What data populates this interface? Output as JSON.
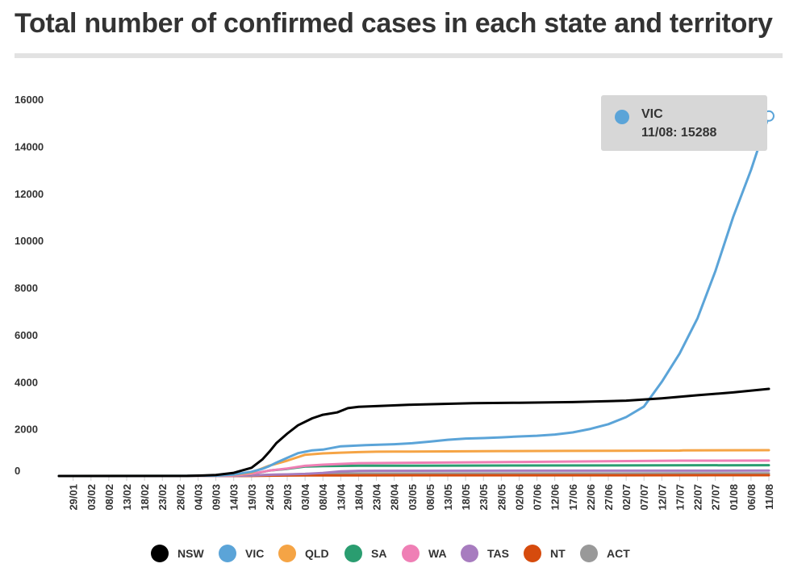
{
  "title": "Total number of confirmed cases in each state and territory",
  "tooltip": {
    "series": "VIC",
    "label": "11/08: 15288",
    "color": "#5ba4d8"
  },
  "chart_data": {
    "type": "line",
    "title": "Total number of confirmed cases in each state and territory",
    "xlabel": "",
    "ylabel": "",
    "x_range": [
      "25/01",
      "11/08"
    ],
    "x_ticks": [
      "29/01",
      "03/02",
      "08/02",
      "13/02",
      "18/02",
      "23/02",
      "28/02",
      "04/03",
      "09/03",
      "14/03",
      "19/03",
      "24/03",
      "29/03",
      "03/04",
      "08/04",
      "13/04",
      "18/04",
      "23/04",
      "28/04",
      "03/05",
      "08/05",
      "13/05",
      "18/05",
      "23/05",
      "28/05",
      "02/06",
      "07/06",
      "12/06",
      "17/06",
      "22/06",
      "27/06",
      "02/07",
      "07/07",
      "12/07",
      "17/07",
      "22/07",
      "27/07",
      "01/08",
      "06/08",
      "11/08"
    ],
    "y_ticks": [
      0,
      2000,
      4000,
      6000,
      8000,
      10000,
      12000,
      14000,
      16000
    ],
    "ylim": [
      0,
      16000
    ],
    "legend_position": "bottom",
    "grid": false,
    "series": [
      {
        "name": "NSW",
        "color": "#000000",
        "points": [
          [
            "25/01",
            0
          ],
          [
            "01/03",
            2
          ],
          [
            "09/03",
            40
          ],
          [
            "14/03",
            135
          ],
          [
            "19/03",
            350
          ],
          [
            "22/03",
            700
          ],
          [
            "24/03",
            1030
          ],
          [
            "26/03",
            1400
          ],
          [
            "29/03",
            1800
          ],
          [
            "01/04",
            2150
          ],
          [
            "05/04",
            2450
          ],
          [
            "08/04",
            2600
          ],
          [
            "12/04",
            2700
          ],
          [
            "15/04",
            2880
          ],
          [
            "18/04",
            2940
          ],
          [
            "25/04",
            2980
          ],
          [
            "03/05",
            3030
          ],
          [
            "20/05",
            3090
          ],
          [
            "02/06",
            3110
          ],
          [
            "17/06",
            3140
          ],
          [
            "02/07",
            3200
          ],
          [
            "12/07",
            3300
          ],
          [
            "22/07",
            3430
          ],
          [
            "01/08",
            3550
          ],
          [
            "11/08",
            3700
          ]
        ]
      },
      {
        "name": "VIC",
        "color": "#5ba4d8",
        "points": [
          [
            "25/01",
            0
          ],
          [
            "01/03",
            9
          ],
          [
            "09/03",
            15
          ],
          [
            "14/03",
            60
          ],
          [
            "19/03",
            180
          ],
          [
            "22/03",
            300
          ],
          [
            "24/03",
            420
          ],
          [
            "26/03",
            570
          ],
          [
            "29/03",
            770
          ],
          [
            "01/04",
            970
          ],
          [
            "05/04",
            1090
          ],
          [
            "08/04",
            1120
          ],
          [
            "13/04",
            1260
          ],
          [
            "20/04",
            1310
          ],
          [
            "28/04",
            1350
          ],
          [
            "03/05",
            1390
          ],
          [
            "08/05",
            1460
          ],
          [
            "13/05",
            1540
          ],
          [
            "18/05",
            1590
          ],
          [
            "23/05",
            1610
          ],
          [
            "28/05",
            1640
          ],
          [
            "02/06",
            1680
          ],
          [
            "07/06",
            1710
          ],
          [
            "12/06",
            1760
          ],
          [
            "17/06",
            1850
          ],
          [
            "22/06",
            2000
          ],
          [
            "27/06",
            2200
          ],
          [
            "02/07",
            2500
          ],
          [
            "07/07",
            2950
          ],
          [
            "12/07",
            4000
          ],
          [
            "17/07",
            5200
          ],
          [
            "22/07",
            6700
          ],
          [
            "27/07",
            8700
          ],
          [
            "01/08",
            11000
          ],
          [
            "06/08",
            13000
          ],
          [
            "11/08",
            15288
          ]
        ]
      },
      {
        "name": "QLD",
        "color": "#f5a445",
        "points": [
          [
            "25/01",
            0
          ],
          [
            "28/01",
            1
          ],
          [
            "02/03",
            9
          ],
          [
            "09/03",
            15
          ],
          [
            "14/03",
            50
          ],
          [
            "19/03",
            150
          ],
          [
            "24/03",
            440
          ],
          [
            "29/03",
            650
          ],
          [
            "03/04",
            900
          ],
          [
            "08/04",
            960
          ],
          [
            "13/04",
            990
          ],
          [
            "18/04",
            1015
          ],
          [
            "23/04",
            1030
          ],
          [
            "28/04",
            1035
          ],
          [
            "28/05",
            1060
          ],
          [
            "15/06",
            1066
          ],
          [
            "17/07",
            1080
          ],
          [
            "18/07",
            1090
          ],
          [
            "11/08",
            1097
          ]
        ]
      },
      {
        "name": "SA",
        "color": "#2a9d70",
        "points": [
          [
            "25/01",
            0
          ],
          [
            "02/03",
            3
          ],
          [
            "09/03",
            7
          ],
          [
            "14/03",
            20
          ],
          [
            "19/03",
            80
          ],
          [
            "24/03",
            230
          ],
          [
            "29/03",
            300
          ],
          [
            "03/04",
            400
          ],
          [
            "08/04",
            420
          ],
          [
            "18/04",
            435
          ],
          [
            "11/08",
            460
          ]
        ]
      },
      {
        "name": "WA",
        "color": "#ef7fb5",
        "points": [
          [
            "25/01",
            0
          ],
          [
            "21/02",
            1
          ],
          [
            "09/03",
            5
          ],
          [
            "14/03",
            20
          ],
          [
            "19/03",
            90
          ],
          [
            "24/03",
            230
          ],
          [
            "29/03",
            320
          ],
          [
            "03/04",
            430
          ],
          [
            "08/04",
            480
          ],
          [
            "18/04",
            546
          ],
          [
            "28/05",
            592
          ],
          [
            "02/06",
            596
          ],
          [
            "17/07",
            650
          ],
          [
            "11/08",
            655
          ]
        ]
      },
      {
        "name": "TAS",
        "color": "#a77cbf",
        "points": [
          [
            "25/01",
            0
          ],
          [
            "02/03",
            1
          ],
          [
            "14/03",
            6
          ],
          [
            "19/03",
            20
          ],
          [
            "24/03",
            50
          ],
          [
            "29/03",
            70
          ],
          [
            "03/04",
            90
          ],
          [
            "08/04",
            130
          ],
          [
            "13/04",
            200
          ],
          [
            "18/04",
            220
          ],
          [
            "23/04",
            224
          ],
          [
            "11/08",
            230
          ]
        ]
      },
      {
        "name": "NT",
        "color": "#d64b0d",
        "points": [
          [
            "25/01",
            0
          ],
          [
            "04/03",
            0
          ],
          [
            "09/03",
            1
          ],
          [
            "19/03",
            5
          ],
          [
            "24/03",
            15
          ],
          [
            "29/03",
            20
          ],
          [
            "03/04",
            28
          ],
          [
            "13/04",
            28
          ],
          [
            "11/08",
            33
          ]
        ]
      },
      {
        "name": "ACT",
        "color": "#999999",
        "points": [
          [
            "25/01",
            0
          ],
          [
            "11/03",
            1
          ],
          [
            "14/03",
            3
          ],
          [
            "19/03",
            10
          ],
          [
            "24/03",
            50
          ],
          [
            "29/03",
            65
          ],
          [
            "03/04",
            80
          ],
          [
            "08/04",
            95
          ],
          [
            "13/04",
            103
          ],
          [
            "18/04",
            106
          ],
          [
            "17/07",
            110
          ],
          [
            "11/08",
            113
          ]
        ]
      }
    ]
  }
}
